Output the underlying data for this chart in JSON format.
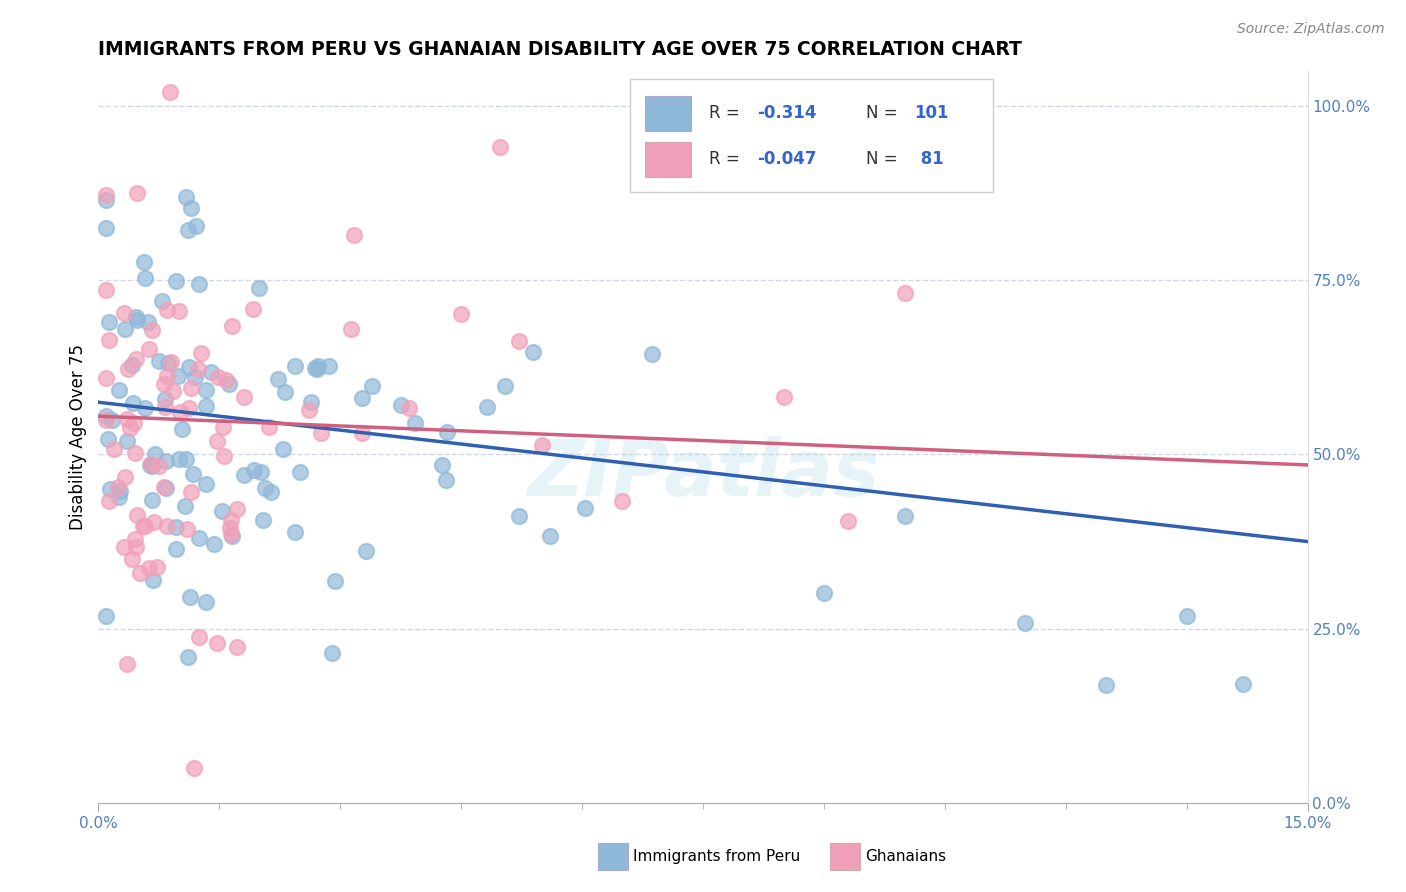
{
  "title": "IMMIGRANTS FROM PERU VS GHANAIAN DISABILITY AGE OVER 75 CORRELATION CHART",
  "source_text": "Source: ZipAtlas.com",
  "ylabel": "Disability Age Over 75",
  "xlim": [
    0.0,
    0.15
  ],
  "ylim": [
    0.0,
    1.05
  ],
  "x_tick_labels": [
    "0.0%",
    "15.0%"
  ],
  "y_tick_labels_right": [
    "0.0%",
    "25.0%",
    "50.0%",
    "75.0%",
    "100.0%"
  ],
  "blue_color": "#90b8d8",
  "pink_color": "#f0a0b8",
  "blue_line_color": "#3060b0",
  "pink_line_color": "#d06080",
  "watermark": "ZIPatlas",
  "blue_R": -0.314,
  "blue_N": 101,
  "pink_R": -0.047,
  "pink_N": 81,
  "tick_color": "#5080c0",
  "grid_color": "#d0d8e8",
  "label_color": "#5080c0"
}
